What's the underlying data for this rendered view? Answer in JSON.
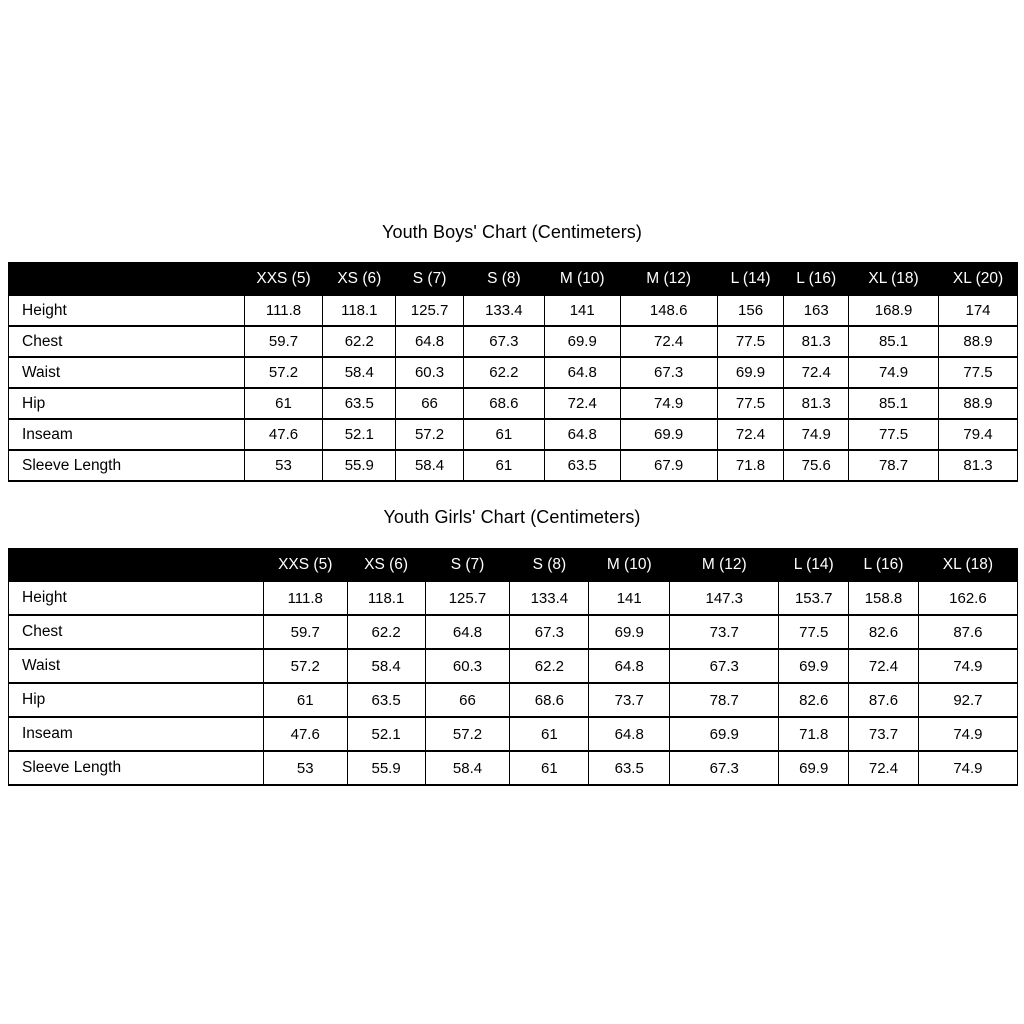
{
  "chart_data": [
    {
      "type": "table",
      "title": "Youth Boys' Chart (Centimeters)",
      "unit": "Centimeters",
      "columns": [
        "",
        "XXS (5)",
        "XS (6)",
        "S (7)",
        "S (8)",
        "M (10)",
        "M (12)",
        "L (14)",
        "L (16)",
        "XL (18)",
        "XL (20)"
      ],
      "rows": [
        {
          "label": "Height",
          "values": [
            111.8,
            118.1,
            125.7,
            133.4,
            141,
            148.6,
            156,
            163,
            168.9,
            174
          ]
        },
        {
          "label": "Chest",
          "values": [
            59.7,
            62.2,
            64.8,
            67.3,
            69.9,
            72.4,
            77.5,
            81.3,
            85.1,
            88.9
          ]
        },
        {
          "label": "Waist",
          "values": [
            57.2,
            58.4,
            60.3,
            62.2,
            64.8,
            67.3,
            69.9,
            72.4,
            74.9,
            77.5
          ]
        },
        {
          "label": "Hip",
          "values": [
            61,
            63.5,
            66,
            68.6,
            72.4,
            74.9,
            77.5,
            81.3,
            85.1,
            88.9
          ]
        },
        {
          "label": "Inseam",
          "values": [
            47.6,
            52.1,
            57.2,
            61,
            64.8,
            69.9,
            72.4,
            74.9,
            77.5,
            79.4
          ]
        },
        {
          "label": "Sleeve Length",
          "values": [
            53,
            55.9,
            58.4,
            61,
            63.5,
            67.9,
            71.8,
            75.6,
            78.7,
            81.3
          ]
        }
      ]
    },
    {
      "type": "table",
      "title": "Youth Girls' Chart (Centimeters)",
      "unit": "Centimeters",
      "columns": [
        "",
        "XXS (5)",
        "XS (6)",
        "S (7)",
        "S (8)",
        "M (10)",
        "M (12)",
        "L (14)",
        "L (16)",
        "XL (18)"
      ],
      "rows": [
        {
          "label": "Height",
          "values": [
            111.8,
            118.1,
            125.7,
            133.4,
            141,
            147.3,
            153.7,
            158.8,
            162.6
          ]
        },
        {
          "label": "Chest",
          "values": [
            59.7,
            62.2,
            64.8,
            67.3,
            69.9,
            73.7,
            77.5,
            82.6,
            87.6
          ]
        },
        {
          "label": "Waist",
          "values": [
            57.2,
            58.4,
            60.3,
            62.2,
            64.8,
            67.3,
            69.9,
            72.4,
            74.9
          ]
        },
        {
          "label": "Hip",
          "values": [
            61,
            63.5,
            66,
            68.6,
            73.7,
            78.7,
            82.6,
            87.6,
            92.7
          ]
        },
        {
          "label": "Inseam",
          "values": [
            47.6,
            52.1,
            57.2,
            61,
            64.8,
            69.9,
            71.8,
            73.7,
            74.9
          ]
        },
        {
          "label": "Sleeve Length",
          "values": [
            53,
            55.9,
            58.4,
            61,
            63.5,
            67.3,
            69.9,
            72.4,
            74.9
          ]
        }
      ]
    }
  ],
  "colors": {
    "header_bg": "#000000",
    "header_text": "#ffffff",
    "body_text": "#000000",
    "border": "#000000",
    "page_bg": "#ffffff"
  }
}
